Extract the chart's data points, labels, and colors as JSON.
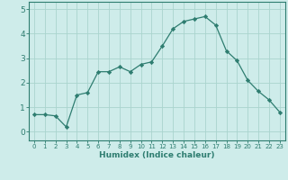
{
  "x": [
    0,
    1,
    2,
    3,
    4,
    5,
    6,
    7,
    8,
    9,
    10,
    11,
    12,
    13,
    14,
    15,
    16,
    17,
    18,
    19,
    20,
    21,
    22,
    23
  ],
  "y": [
    0.7,
    0.7,
    0.65,
    0.2,
    1.5,
    1.6,
    2.45,
    2.45,
    2.65,
    2.45,
    2.75,
    2.85,
    3.5,
    4.2,
    4.5,
    4.6,
    4.7,
    4.35,
    3.3,
    2.9,
    2.1,
    1.65,
    1.3,
    0.8
  ],
  "line_color": "#2e7d70",
  "marker": "D",
  "marker_size": 2.2,
  "bg_color": "#ceecea",
  "grid_color": "#aad4ce",
  "xlabel": "Humidex (Indice chaleur)",
  "xlim": [
    -0.5,
    23.5
  ],
  "ylim": [
    -0.35,
    5.3
  ],
  "yticks": [
    0,
    1,
    2,
    3,
    4,
    5
  ],
  "xticks": [
    0,
    1,
    2,
    3,
    4,
    5,
    6,
    7,
    8,
    9,
    10,
    11,
    12,
    13,
    14,
    15,
    16,
    17,
    18,
    19,
    20,
    21,
    22,
    23
  ],
  "xlabel_fontsize": 6.5,
  "ytick_fontsize": 6.5,
  "xtick_fontsize": 5.0
}
